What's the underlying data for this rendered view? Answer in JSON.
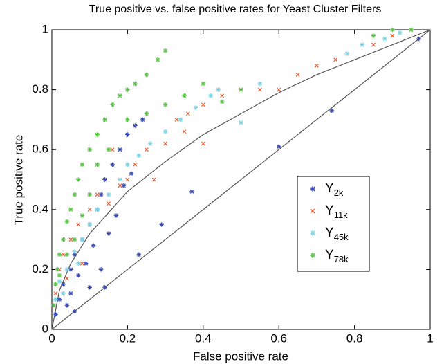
{
  "chart_data": {
    "type": "scatter",
    "title": "True positive vs. false positive rates for Yeast Cluster Filters",
    "x_label": "False positive rate",
    "y_label": "True positive rate",
    "xlim": [
      0,
      1
    ],
    "ylim": [
      0,
      1
    ],
    "xticks": [
      0,
      0.2,
      0.4,
      0.6,
      0.8,
      1
    ],
    "yticks": [
      0,
      0.2,
      0.4,
      0.6,
      0.8,
      1
    ],
    "grid": false,
    "legend": "right",
    "reference_curves": [
      {
        "color": "#555555",
        "x": [
          0,
          1
        ],
        "y": [
          0,
          1
        ]
      },
      {
        "color": "#555555",
        "x": [
          0,
          0.02,
          0.05,
          0.1,
          0.2,
          0.3,
          0.4,
          0.5,
          0.6,
          0.7,
          0.8,
          0.9,
          1
        ],
        "y": [
          0,
          0.13,
          0.22,
          0.32,
          0.46,
          0.56,
          0.65,
          0.72,
          0.79,
          0.85,
          0.9,
          0.95,
          1
        ]
      }
    ],
    "series": [
      {
        "name": "Y",
        "subscript": "2k",
        "color": "#3b4cb0",
        "marker": "asterisk",
        "x": [
          0.01,
          0.02,
          0.03,
          0.04,
          0.05,
          0.05,
          0.06,
          0.07,
          0.08,
          0.09,
          0.1,
          0.1,
          0.11,
          0.12,
          0.13,
          0.13,
          0.14,
          0.15,
          0.16,
          0.17,
          0.18,
          0.19,
          0.2,
          0.21,
          0.22,
          0.23,
          0.24,
          0.29,
          0.37,
          0.6,
          0.74,
          0.97,
          0.14,
          0.06
        ],
        "values": [
          0.05,
          0.1,
          0.15,
          0.08,
          0.2,
          0.12,
          0.25,
          0.18,
          0.3,
          0.22,
          0.35,
          0.14,
          0.28,
          0.4,
          0.2,
          0.45,
          0.5,
          0.32,
          0.55,
          0.38,
          0.6,
          0.48,
          0.65,
          0.52,
          0.68,
          0.25,
          0.7,
          0.35,
          0.46,
          0.61,
          0.73,
          0.97,
          0.14,
          0.06
        ]
      },
      {
        "name": "Y",
        "subscript": "11k",
        "color": "#e8582a",
        "marker": "x",
        "x": [
          0.01,
          0.02,
          0.03,
          0.05,
          0.07,
          0.1,
          0.12,
          0.15,
          0.18,
          0.2,
          0.22,
          0.25,
          0.27,
          0.3,
          0.33,
          0.36,
          0.4,
          0.45,
          0.5,
          0.55,
          0.6,
          0.65,
          0.7,
          0.75,
          0.85,
          0.9,
          0.95,
          0.4,
          0.35,
          0.16,
          0.08,
          0.04
        ],
        "values": [
          0.12,
          0.2,
          0.25,
          0.3,
          0.35,
          0.4,
          0.45,
          0.42,
          0.48,
          0.5,
          0.55,
          0.6,
          0.5,
          0.62,
          0.7,
          0.72,
          0.75,
          0.78,
          0.8,
          0.8,
          0.8,
          0.85,
          0.88,
          0.9,
          0.95,
          0.98,
          1,
          0.62,
          0.66,
          0.6,
          0.22,
          0.17
        ]
      },
      {
        "name": "Y",
        "subscript": "45k",
        "color": "#7fd3e3",
        "marker": "asterisk",
        "x": [
          0.01,
          0.02,
          0.04,
          0.06,
          0.08,
          0.1,
          0.12,
          0.15,
          0.18,
          0.2,
          0.23,
          0.26,
          0.3,
          0.34,
          0.38,
          0.42,
          0.44,
          0.5,
          0.55,
          0.78,
          0.82,
          0.88,
          0.92,
          0.03,
          0.07
        ],
        "values": [
          0.1,
          0.16,
          0.2,
          0.26,
          0.3,
          0.35,
          0.4,
          0.45,
          0.5,
          0.55,
          0.58,
          0.62,
          0.66,
          0.7,
          0.74,
          0.78,
          0.8,
          0.69,
          0.82,
          0.92,
          0.95,
          0.97,
          0.99,
          0.12,
          0.22
        ]
      },
      {
        "name": "Y",
        "subscript": "78k",
        "color": "#5cc44a",
        "marker": "asterisk",
        "x": [
          0.005,
          0.01,
          0.015,
          0.02,
          0.03,
          0.04,
          0.05,
          0.06,
          0.07,
          0.08,
          0.1,
          0.12,
          0.14,
          0.16,
          0.18,
          0.2,
          0.22,
          0.25,
          0.28,
          0.3,
          0.35,
          0.4,
          0.45,
          0.5,
          0.15,
          0.12,
          0.1,
          0.08,
          0.06,
          0.04,
          0.02,
          0.2,
          0.25,
          0.3,
          0.85,
          0.9,
          0.95
        ],
        "values": [
          0.08,
          0.15,
          0.2,
          0.25,
          0.3,
          0.36,
          0.4,
          0.45,
          0.5,
          0.55,
          0.6,
          0.65,
          0.7,
          0.75,
          0.78,
          0.8,
          0.82,
          0.85,
          0.9,
          0.93,
          0.78,
          0.82,
          0.76,
          0.8,
          0.6,
          0.55,
          0.45,
          0.38,
          0.3,
          0.25,
          0.18,
          0.7,
          0.72,
          0.75,
          0.98,
          1,
          1
        ]
      }
    ]
  }
}
